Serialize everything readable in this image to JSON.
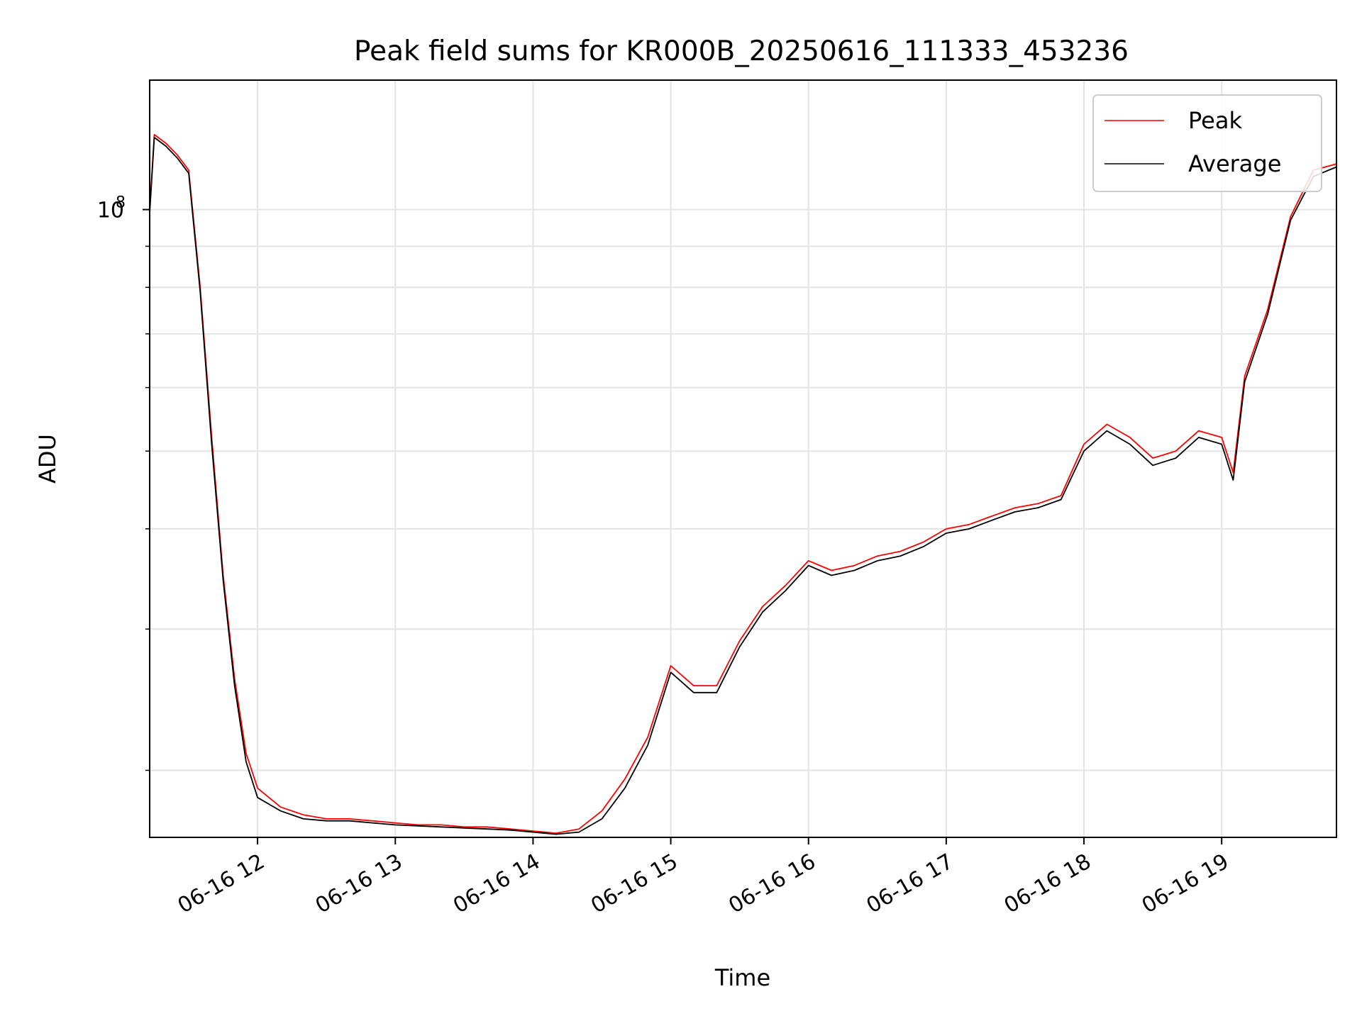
{
  "chart_data": {
    "type": "line",
    "title": "Peak field sums for KR000B_20250616_111333_453236",
    "xlabel": "Time",
    "ylabel": "ADU",
    "y_scale": "log",
    "ylim": [
      16500000,
      145000000
    ],
    "xlim": [
      "06-16 11:13",
      "06-16 19:50"
    ],
    "x_ticks": [
      "06-16 12",
      "06-16 13",
      "06-16 14",
      "06-16 15",
      "06-16 16",
      "06-16 17",
      "06-16 18",
      "06-16 19"
    ],
    "y_major_tick_label": "10",
    "y_major_tick_exponent": "8",
    "y_major_tick_value": 100000000,
    "y_minor_ticks": [
      20000000,
      30000000,
      40000000,
      50000000,
      60000000,
      70000000,
      80000000,
      90000000
    ],
    "grid": true,
    "legend_position": "upper right",
    "colors": {
      "peak": "#ff0000",
      "average": "#000000"
    },
    "x": [
      "06-16 11:13",
      "06-16 11:15",
      "06-16 11:20",
      "06-16 11:25",
      "06-16 11:30",
      "06-16 11:35",
      "06-16 11:40",
      "06-16 11:45",
      "06-16 11:50",
      "06-16 11:55",
      "06-16 12:00",
      "06-16 12:10",
      "06-16 12:20",
      "06-16 12:30",
      "06-16 12:40",
      "06-16 12:50",
      "06-16 13:00",
      "06-16 13:10",
      "06-16 13:20",
      "06-16 13:30",
      "06-16 13:40",
      "06-16 13:50",
      "06-16 14:00",
      "06-16 14:10",
      "06-16 14:20",
      "06-16 14:30",
      "06-16 14:40",
      "06-16 14:50",
      "06-16 15:00",
      "06-16 15:10",
      "06-16 15:20",
      "06-16 15:30",
      "06-16 15:40",
      "06-16 15:50",
      "06-16 16:00",
      "06-16 16:10",
      "06-16 16:20",
      "06-16 16:30",
      "06-16 16:40",
      "06-16 16:50",
      "06-16 17:00",
      "06-16 17:10",
      "06-16 17:20",
      "06-16 17:30",
      "06-16 17:40",
      "06-16 17:50",
      "06-16 18:00",
      "06-16 18:10",
      "06-16 18:20",
      "06-16 18:30",
      "06-16 18:40",
      "06-16 18:50",
      "06-16 19:00",
      "06-16 19:05",
      "06-16 19:10",
      "06-16 19:20",
      "06-16 19:30",
      "06-16 19:40",
      "06-16 19:50"
    ],
    "series": [
      {
        "name": "Peak",
        "values": [
          100000000,
          124000000,
          121000000,
          117000000,
          112000000,
          80000000,
          52000000,
          35000000,
          26000000,
          21000000,
          19000000,
          18000000,
          17600000,
          17400000,
          17400000,
          17300000,
          17200000,
          17100000,
          17100000,
          17000000,
          17000000,
          16900000,
          16800000,
          16700000,
          16900000,
          17800000,
          19500000,
          22000000,
          27000000,
          25500000,
          25500000,
          29000000,
          32000000,
          34000000,
          36500000,
          35500000,
          36000000,
          37000000,
          37500000,
          38500000,
          40000000,
          40500000,
          41500000,
          42500000,
          43000000,
          44000000,
          51000000,
          54000000,
          52000000,
          49000000,
          50000000,
          53000000,
          52000000,
          47000000,
          62000000,
          75000000,
          98000000,
          112000000,
          114000000
        ]
      },
      {
        "name": "Average",
        "values": [
          99000000,
          123000000,
          120000000,
          116000000,
          111000000,
          79000000,
          51000000,
          34500000,
          25500000,
          20500000,
          18500000,
          17800000,
          17400000,
          17300000,
          17300000,
          17200000,
          17100000,
          17050000,
          17000000,
          16950000,
          16900000,
          16850000,
          16750000,
          16650000,
          16750000,
          17400000,
          19000000,
          21500000,
          26500000,
          25000000,
          25000000,
          28500000,
          31500000,
          33500000,
          36000000,
          35000000,
          35500000,
          36500000,
          37000000,
          38000000,
          39500000,
          40000000,
          41000000,
          42000000,
          42500000,
          43500000,
          50000000,
          53000000,
          51000000,
          48000000,
          49000000,
          52000000,
          51000000,
          46000000,
          61000000,
          74000000,
          97000000,
          110000000,
          113000000
        ]
      }
    ]
  }
}
